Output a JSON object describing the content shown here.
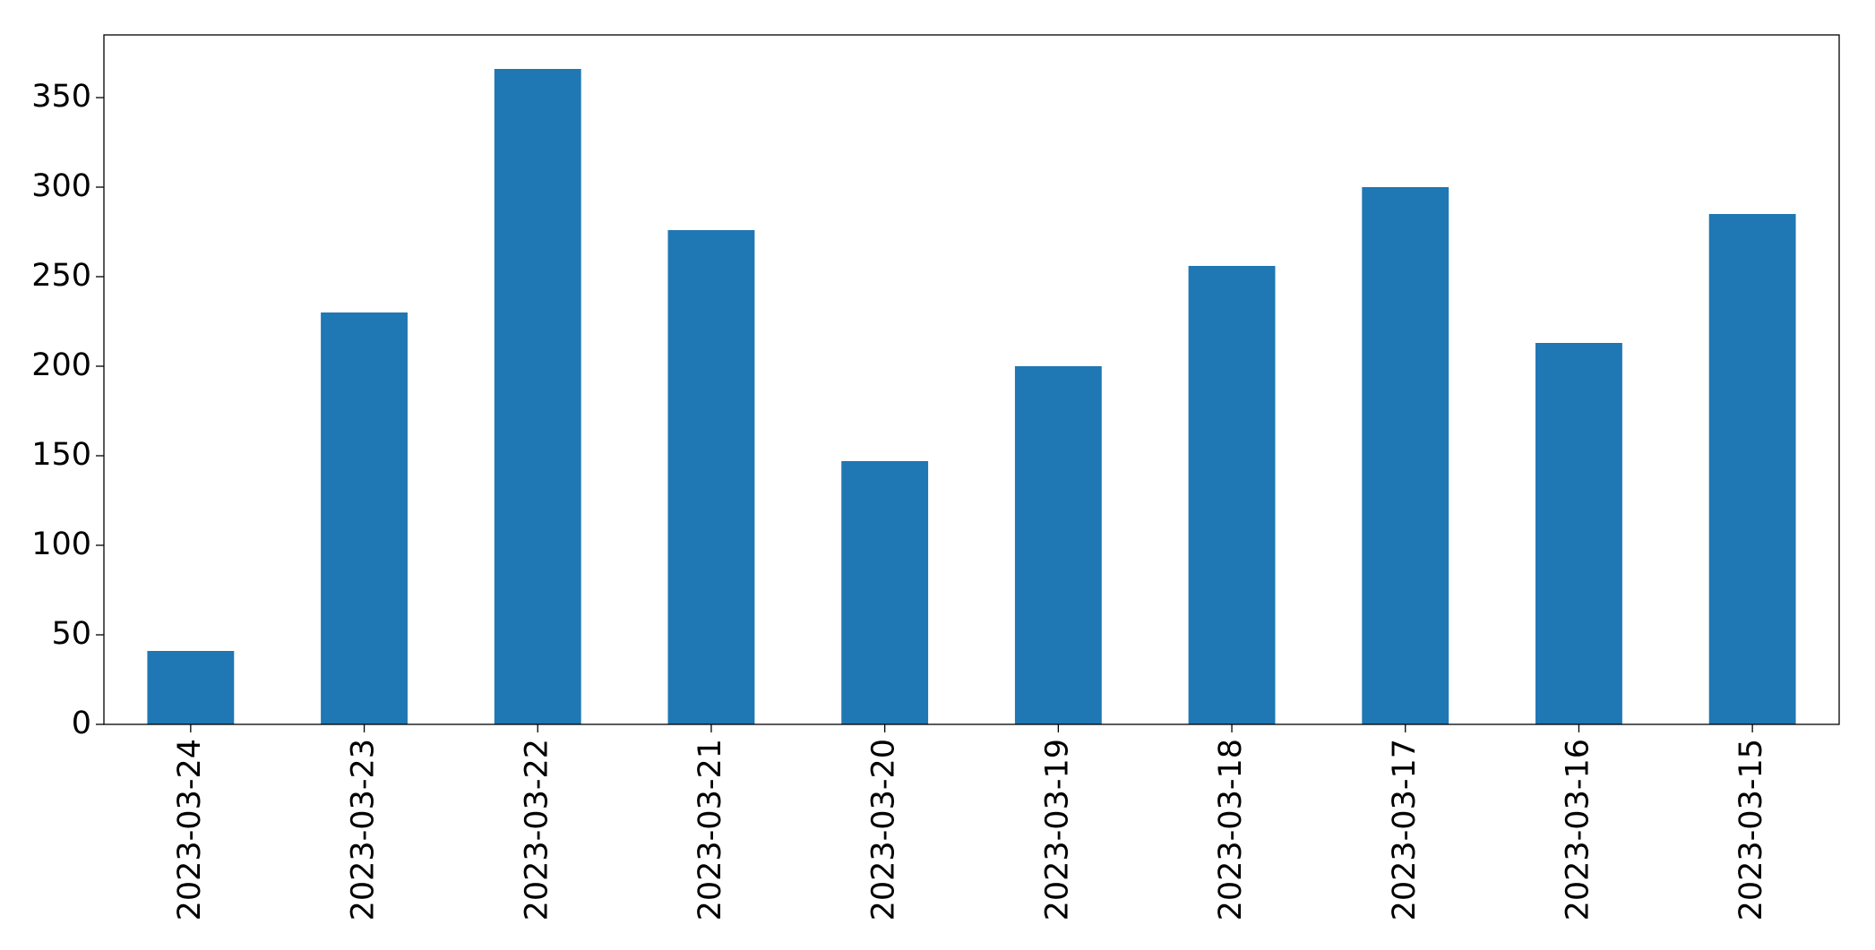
{
  "chart_data": {
    "type": "bar",
    "categories": [
      "2023-03-24",
      "2023-03-23",
      "2023-03-22",
      "2023-03-21",
      "2023-03-20",
      "2023-03-19",
      "2023-03-18",
      "2023-03-17",
      "2023-03-16",
      "2023-03-15"
    ],
    "values": [
      41,
      230,
      366,
      276,
      147,
      200,
      256,
      300,
      213,
      285
    ],
    "color": "#1f77b4",
    "ylim": [
      0,
      385
    ],
    "yticks": [
      0,
      50,
      100,
      150,
      200,
      250,
      300,
      350
    ],
    "grid": false
  }
}
